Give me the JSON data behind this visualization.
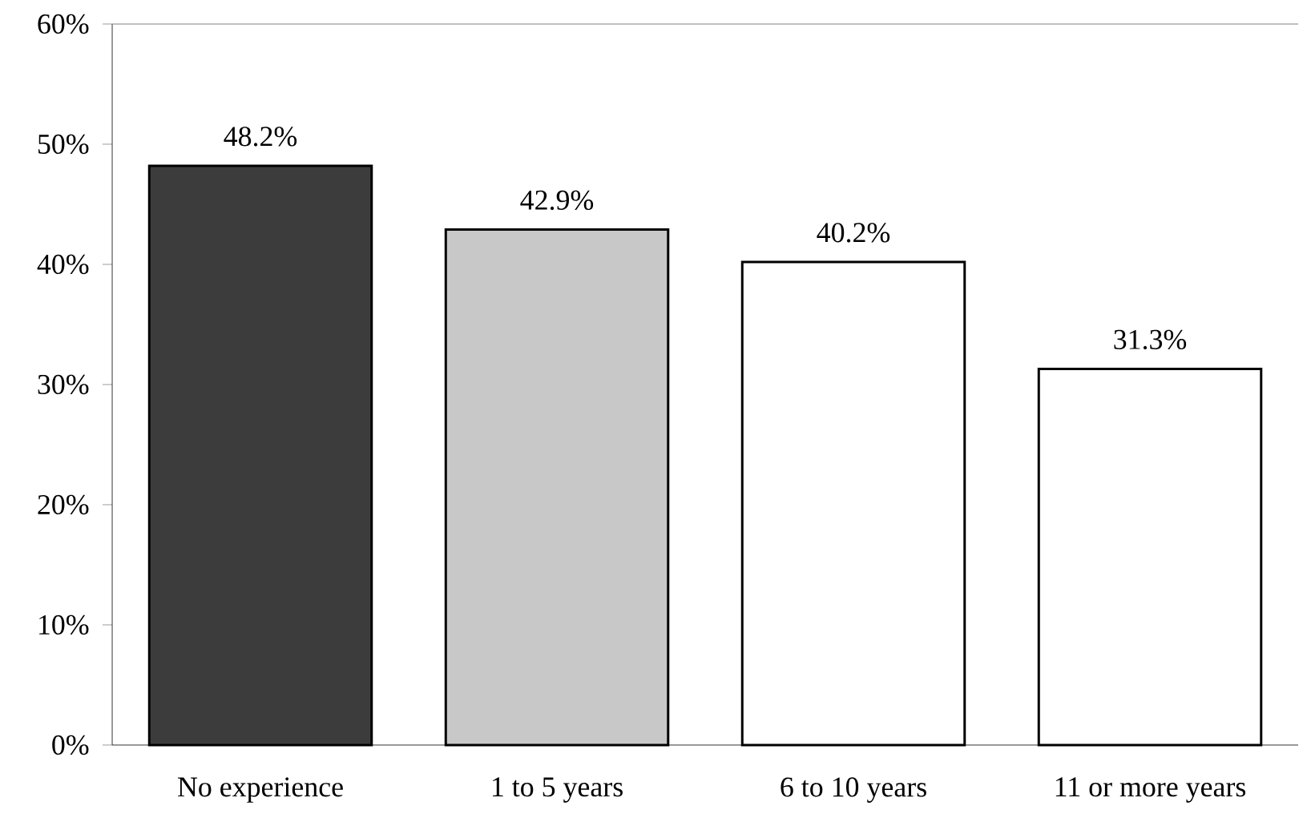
{
  "chart_data": {
    "type": "bar",
    "categories": [
      "No experience",
      "1 to 5 years",
      "6 to 10 years",
      "11 or more years"
    ],
    "values": [
      48.2,
      42.9,
      40.2,
      31.3
    ],
    "colors": [
      "#3c3c3c",
      "#c8c8c8",
      "#ffffff",
      "#ffffff"
    ],
    "value_labels": [
      "48.2%",
      "42.9%",
      "40.2%",
      "31.3%"
    ],
    "ylim": [
      0,
      60
    ],
    "yticks": [
      {
        "value": 0,
        "label": "0%"
      },
      {
        "value": 10,
        "label": "10%"
      },
      {
        "value": 20,
        "label": "20%"
      },
      {
        "value": 30,
        "label": "30%"
      },
      {
        "value": 40,
        "label": "40%"
      },
      {
        "value": 50,
        "label": "50%"
      },
      {
        "value": 60,
        "label": "60%"
      }
    ],
    "grid": false
  }
}
